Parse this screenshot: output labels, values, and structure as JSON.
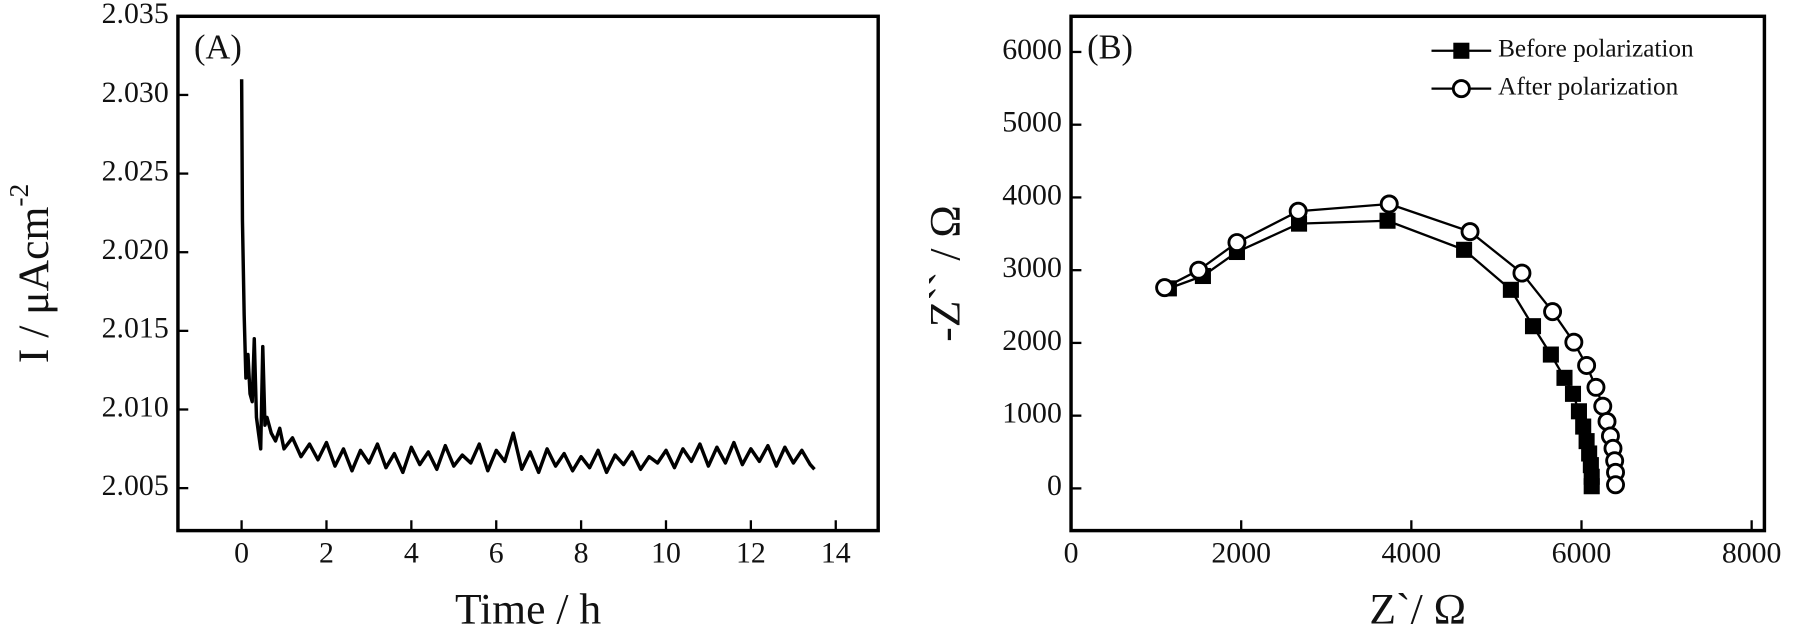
{
  "chart_data": [
    {
      "type": "line",
      "annotation": "(A)",
      "xlabel": "Time / h",
      "ylabel": "I / μAcm",
      "ylabel_sup": "-2",
      "color": "#000000",
      "x": [
        0,
        0.02,
        0.06,
        0.1,
        0.15,
        0.2,
        0.25,
        0.3,
        0.35,
        0.4,
        0.45,
        0.5,
        0.55,
        0.6,
        0.7,
        0.8,
        0.9,
        1.0,
        1.2,
        1.4,
        1.6,
        1.8,
        2.0,
        2.2,
        2.4,
        2.6,
        2.8,
        3.0,
        3.2,
        3.4,
        3.6,
        3.8,
        4.0,
        4.2,
        4.4,
        4.6,
        4.8,
        5.0,
        5.2,
        5.4,
        5.6,
        5.8,
        6.0,
        6.2,
        6.4,
        6.6,
        6.8,
        7.0,
        7.2,
        7.4,
        7.6,
        7.8,
        8.0,
        8.2,
        8.4,
        8.6,
        8.8,
        9.0,
        9.2,
        9.4,
        9.6,
        9.8,
        10.0,
        10.2,
        10.4,
        10.6,
        10.8,
        11.0,
        11.2,
        11.4,
        11.6,
        11.8,
        12.0,
        12.2,
        12.4,
        12.6,
        12.8,
        13.0,
        13.2,
        13.4,
        13.5
      ],
      "values": [
        2.031,
        2.022,
        2.016,
        2.012,
        2.0135,
        2.011,
        2.0105,
        2.0145,
        2.0095,
        2.0085,
        2.0075,
        2.014,
        2.009,
        2.0095,
        2.0085,
        2.008,
        2.0088,
        2.0075,
        2.0082,
        2.007,
        2.0078,
        2.0068,
        2.0079,
        2.0064,
        2.0075,
        2.0061,
        2.0074,
        2.0066,
        2.0078,
        2.0063,
        2.0072,
        2.006,
        2.0076,
        2.0065,
        2.0073,
        2.0062,
        2.0077,
        2.0064,
        2.0071,
        2.0066,
        2.0078,
        2.0061,
        2.0074,
        2.0067,
        2.0085,
        2.0062,
        2.0073,
        2.006,
        2.0075,
        2.0064,
        2.0072,
        2.0061,
        2.007,
        2.0063,
        2.0074,
        2.006,
        2.0071,
        2.0065,
        2.0073,
        2.0062,
        2.007,
        2.0066,
        2.0074,
        2.0063,
        2.0075,
        2.0067,
        2.0078,
        2.0064,
        2.0076,
        2.0066,
        2.0079,
        2.0065,
        2.0075,
        2.0067,
        2.0077,
        2.0064,
        2.0076,
        2.0066,
        2.0074,
        2.0065,
        2.0062
      ],
      "xlim": [
        -1.5,
        15
      ],
      "xticks": [
        0,
        2,
        4,
        6,
        8,
        10,
        12,
        14
      ],
      "ylim": [
        2.0023,
        2.035
      ],
      "yticks": [
        2.005,
        {
          "value": 2.01,
          "label": "2.010"
        },
        2.015,
        {
          "value": 2.02,
          "label": "2.020"
        },
        2.025,
        {
          "value": 2.03,
          "label": "2.030"
        },
        2.035
      ]
    },
    {
      "type": "scatter",
      "annotation": "(B)",
      "xlabel": "Z`/ Ω",
      "ylabel": "-Z`` / Ω",
      "legend": "upper right",
      "series": [
        {
          "name": "Before polarization",
          "color": "#000000",
          "marker": "square",
          "x": [
            1150,
            1550,
            1950,
            2680,
            3720,
            4620,
            5170,
            5430,
            5640,
            5800,
            5900,
            5970,
            6020,
            6060,
            6090,
            6110,
            6120,
            6120
          ],
          "values": [
            2750,
            2920,
            3250,
            3640,
            3680,
            3280,
            2730,
            2230,
            1840,
            1520,
            1300,
            1060,
            850,
            650,
            480,
            320,
            160,
            30
          ]
        },
        {
          "name": "After polarization",
          "color": "#000000",
          "marker": "circle",
          "x": [
            1100,
            1500,
            1950,
            2670,
            3740,
            4690,
            5300,
            5660,
            5910,
            6060,
            6170,
            6250,
            6300,
            6340,
            6370,
            6390,
            6400,
            6400
          ],
          "values": [
            2760,
            3000,
            3380,
            3810,
            3910,
            3530,
            2960,
            2430,
            2010,
            1690,
            1390,
            1130,
            920,
            720,
            550,
            380,
            220,
            50
          ]
        }
      ],
      "xlim": [
        0,
        8150
      ],
      "xticks": [
        0,
        2000,
        4000,
        6000,
        8000
      ],
      "ylim": [
        -580,
        6490
      ],
      "yticks": [
        0,
        1000,
        2000,
        3000,
        4000,
        5000,
        6000
      ]
    }
  ]
}
